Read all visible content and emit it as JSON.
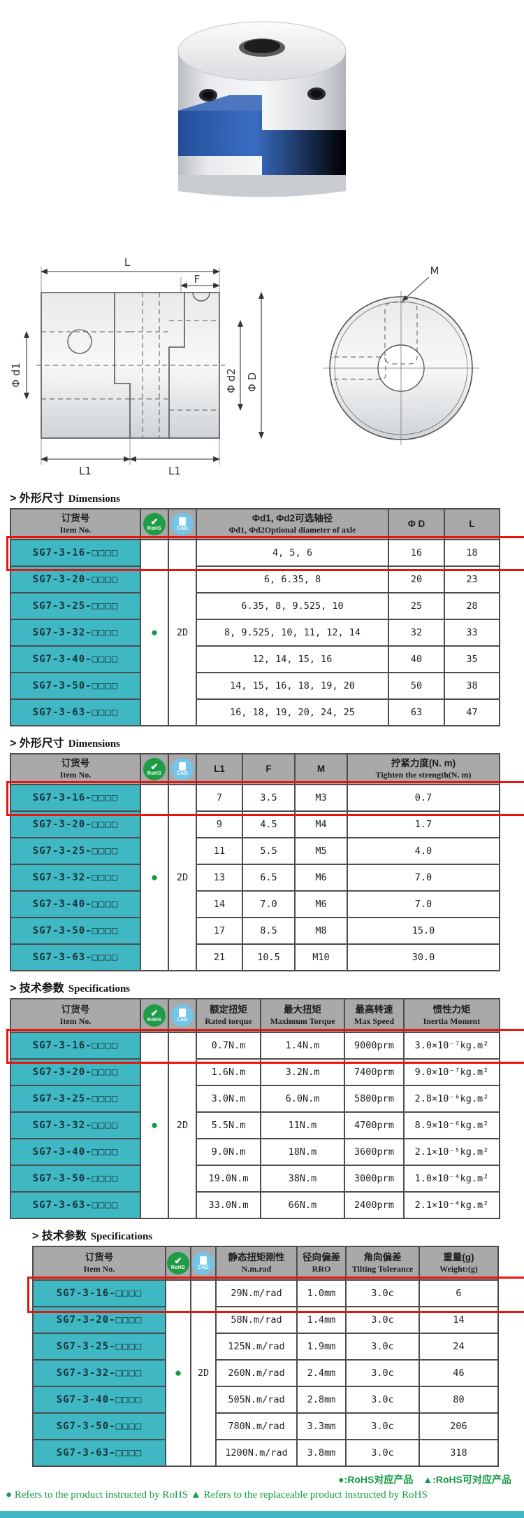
{
  "colors": {
    "teal": "#3fb8c4",
    "header_gray": "#a9a9a9",
    "highlight_red": "#e8150d",
    "rohs_green": "#1f9c46",
    "cad_blue": "#74c5e8",
    "spider_blue": "#2f62b5",
    "footer_green": "#149b43"
  },
  "item_numbers": [
    "SG7-3-16-□□□□",
    "SG7-3-20-□□□□",
    "SG7-3-25-□□□□",
    "SG7-3-32-□□□□",
    "SG7-3-40-□□□□",
    "SG7-3-50-□□□□",
    "SG7-3-63-□□□□"
  ],
  "header_item": {
    "zh": "订货号",
    "en": "Item No."
  },
  "badges": {
    "rohs_label": "RoHS",
    "cad_label": "CAD",
    "dot": "●",
    "cad_value": "2D"
  },
  "drawing": {
    "dim_l": "L",
    "dim_f": "F",
    "dim_m": "M",
    "dim_d1": "Φ d1",
    "dim_d2": "Φ d2",
    "dim_d": "Φ D",
    "dim_l1_left": "L1",
    "dim_l1_right": "L1"
  },
  "tables": [
    {
      "title_zh": "> 外形尺寸",
      "title_en": "Dimensions",
      "cols": [
        {
          "l1": "Φd1, Φd2可选轴径",
          "l2": "Φd1, Φd2Optional diameter of axle"
        },
        {
          "l1": "Φ D",
          "l2": ""
        },
        {
          "l1": "L",
          "l2": ""
        }
      ],
      "rows": [
        [
          "4, 5, 6",
          "16",
          "18"
        ],
        [
          "6, 6.35, 8",
          "20",
          "23"
        ],
        [
          "6.35, 8, 9.525, 10",
          "25",
          "28"
        ],
        [
          "8, 9.525, 10, 11, 12, 14",
          "32",
          "33"
        ],
        [
          "12, 14, 15, 16",
          "40",
          "35"
        ],
        [
          "14, 15, 16, 18, 19, 20",
          "50",
          "38"
        ],
        [
          "16, 18, 19, 20, 24, 25",
          "63",
          "47"
        ]
      ]
    },
    {
      "title_zh": "> 外形尺寸",
      "title_en": "Dimensions",
      "cols": [
        {
          "l1": "L1",
          "l2": ""
        },
        {
          "l1": "F",
          "l2": ""
        },
        {
          "l1": "M",
          "l2": ""
        },
        {
          "l1": "拧紧力度(N. m)",
          "l2": "Tighten the strength(N. m)"
        }
      ],
      "rows": [
        [
          "7",
          "3.5",
          "M3",
          "0.7"
        ],
        [
          "9",
          "4.5",
          "M4",
          "1.7"
        ],
        [
          "11",
          "5.5",
          "M5",
          "4.0"
        ],
        [
          "13",
          "6.5",
          "M6",
          "7.0"
        ],
        [
          "14",
          "7.0",
          "M6",
          "7.0"
        ],
        [
          "17",
          "8.5",
          "M8",
          "15.0"
        ],
        [
          "21",
          "10.5",
          "M10",
          "30.0"
        ]
      ]
    },
    {
      "title_zh": "> 技术参数",
      "title_en": "Specifications",
      "cols": [
        {
          "l1": "额定扭矩",
          "l2": "Rated torque"
        },
        {
          "l1": "最大扭矩",
          "l2": "Maximum Torque"
        },
        {
          "l1": "最高转速",
          "l2": "Max Speed"
        },
        {
          "l1": "惯性力矩",
          "l2": "Inertia Moment"
        }
      ],
      "rows": [
        [
          "0.7N.m",
          "1.4N.m",
          "9000prm",
          "3.0×10⁻⁷kg.m²"
        ],
        [
          "1.6N.m",
          "3.2N.m",
          "7400prm",
          "9.0×10⁻⁷kg.m²"
        ],
        [
          "3.0N.m",
          "6.0N.m",
          "5800prm",
          "2.8×10⁻⁶kg.m²"
        ],
        [
          "5.5N.m",
          "11N.m",
          "4700prm",
          "8.9×10⁻⁶kg.m²"
        ],
        [
          "9.0N.m",
          "18N.m",
          "3600prm",
          "2.1×10⁻⁵kg.m²"
        ],
        [
          "19.0N.m",
          "38N.m",
          "3000prm",
          "1.0×10⁻⁴kg.m²"
        ],
        [
          "33.0N.m",
          "66N.m",
          "2400prm",
          "2.1×10⁻⁴kg.m²"
        ]
      ]
    },
    {
      "title_zh": "> 技术参数",
      "title_en": "Specifications",
      "cols": [
        {
          "l1": "静态扭矩刚性",
          "l2": "N.m.rad"
        },
        {
          "l1": "径向偏差",
          "l2": "RRO"
        },
        {
          "l1": "角向偏差",
          "l2": "Tilting Tolerance"
        },
        {
          "l1": "重量(g)",
          "l2": "Weight:(g)"
        }
      ],
      "rows": [
        [
          "29N.m/rad",
          "1.0mm",
          "3.0c",
          "6"
        ],
        [
          "58N.m/rad",
          "1.4mm",
          "3.0c",
          "14"
        ],
        [
          "125N.m/rad",
          "1.9mm",
          "3.0c",
          "24"
        ],
        [
          "260N.m/rad",
          "2.4mm",
          "3.0c",
          "46"
        ],
        [
          "505N.m/rad",
          "2.8mm",
          "3.0c",
          "80"
        ],
        [
          "780N.m/rad",
          "3.3mm",
          "3.0c",
          "206"
        ],
        [
          "1200N.m/rad",
          "3.8mm",
          "3.0c",
          "318"
        ]
      ]
    }
  ],
  "footer": {
    "legend_cn": "●:RoHS对应产品　▲:RoHS可对应产品",
    "legend_en_dot": "●",
    "legend_en_1": "Refers to the product instructed by RoHS",
    "legend_en_tri": "▲",
    "legend_en_2": "Refers to the replaceable product instructed by RoHS"
  }
}
